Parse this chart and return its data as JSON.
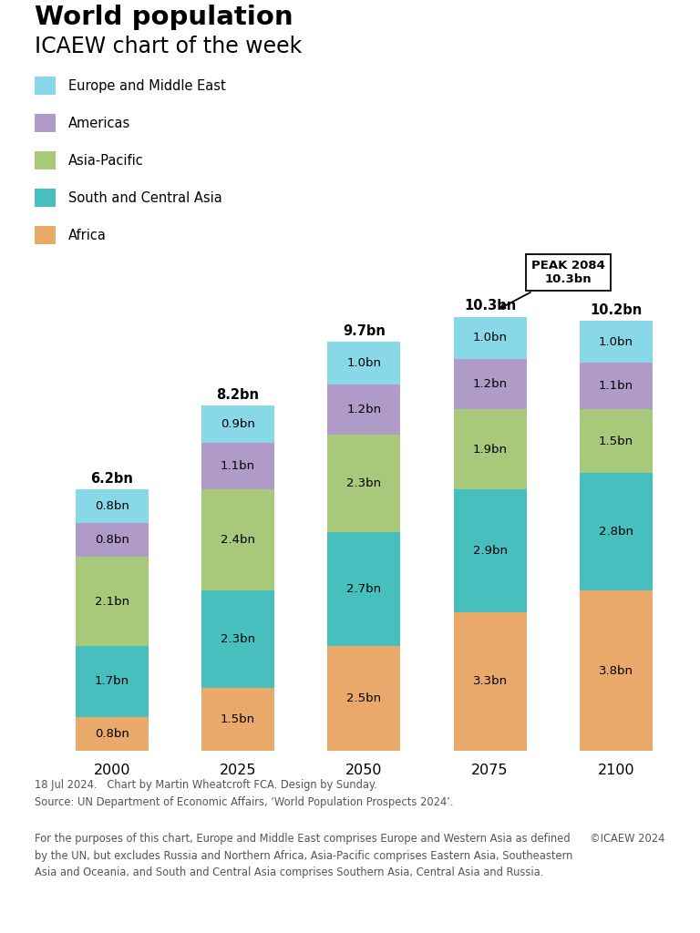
{
  "title": "World population",
  "subtitle": "ICAEW chart of the week",
  "years": [
    2000,
    2025,
    2050,
    2075,
    2100
  ],
  "regions": [
    "Africa",
    "South and Central Asia",
    "Asia-Pacific",
    "Americas",
    "Europe and Middle East"
  ],
  "colors": [
    "#E8A96A",
    "#47BFBF",
    "#A8C87A",
    "#B09AC8",
    "#88D8E8"
  ],
  "data": {
    "Africa": [
      0.8,
      1.5,
      2.5,
      3.3,
      3.8
    ],
    "South and Central Asia": [
      1.7,
      2.3,
      2.7,
      2.9,
      2.8
    ],
    "Asia-Pacific": [
      2.1,
      2.4,
      2.3,
      1.9,
      1.5
    ],
    "Americas": [
      0.8,
      1.1,
      1.2,
      1.2,
      1.1
    ],
    "Europe and Middle East": [
      0.8,
      0.9,
      1.0,
      1.0,
      1.0
    ]
  },
  "totals": [
    "6.2bn",
    "8.2bn",
    "9.7bn",
    "10.3bn",
    "10.2bn"
  ],
  "totals_vals": [
    6.2,
    8.2,
    9.7,
    10.3,
    10.2
  ],
  "segment_labels": {
    "Africa": [
      "0.8bn",
      "1.5bn",
      "2.5bn",
      "3.3bn",
      "3.8bn"
    ],
    "South and Central Asia": [
      "1.7bn",
      "2.3bn",
      "2.7bn",
      "2.9bn",
      "2.8bn"
    ],
    "Asia-Pacific": [
      "2.1bn",
      "2.4bn",
      "2.3bn",
      "1.9bn",
      "1.5bn"
    ],
    "Americas": [
      "0.8bn",
      "1.1bn",
      "1.2bn",
      "1.2bn",
      "1.1bn"
    ],
    "Europe and Middle East": [
      "0.8bn",
      "0.9bn",
      "1.0bn",
      "1.0bn",
      "1.0bn"
    ]
  },
  "peak_annotation": "PEAK 2084\n10.3bn",
  "peak_year_index": 3,
  "legend_order": [
    "Europe and Middle East",
    "Americas",
    "Asia-Pacific",
    "South and Central Asia",
    "Africa"
  ],
  "footer_line1": "18 Jul 2024.   Chart by Martin Wheatcroft FCA. Design by Sunday.",
  "footer_line2": "Source: UN Department of Economic Affairs, ‘World Population Prospects 2024’.",
  "footer_note": "For the purposes of this chart, Europe and Middle East comprises Europe and Western Asia as defined\nby the UN, but excludes Russia and Northern Africa, Asia-Pacific comprises Eastern Asia, Southeastern\nAsia and Oceania, and South and Central Asia comprises Southern Asia, Central Asia and Russia.",
  "copyright": "©ICAEW 2024",
  "background_color": "#FFFFFF"
}
